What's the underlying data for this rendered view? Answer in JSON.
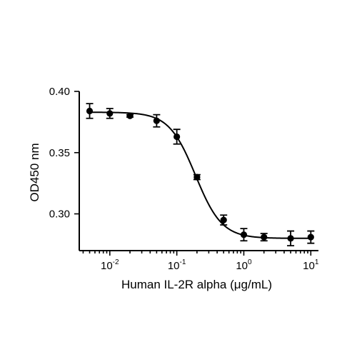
{
  "chart_data": {
    "type": "scatter",
    "xscale": "log",
    "xlabel": "Human IL-2R alpha (μg/mL)",
    "ylabel": "OD450 nm",
    "xlim": [
      0.0035,
      13
    ],
    "ylim": [
      0.27,
      0.4
    ],
    "yticks": [
      {
        "value": 0.3,
        "label": "0.30"
      },
      {
        "value": 0.35,
        "label": "0.35"
      },
      {
        "value": 0.4,
        "label": "0.40"
      }
    ],
    "xticks": [
      {
        "value": 0.01,
        "base": "10",
        "exp": "-2"
      },
      {
        "value": 0.1,
        "base": "10",
        "exp": "-1"
      },
      {
        "value": 1,
        "base": "10",
        "exp": "0"
      },
      {
        "value": 10,
        "base": "10",
        "exp": "1"
      }
    ],
    "series": [
      {
        "x": [
          0.005,
          0.01,
          0.02,
          0.05,
          0.1,
          0.2,
          0.5,
          1,
          2,
          5,
          10
        ],
        "y": [
          0.384,
          0.382,
          0.38,
          0.376,
          0.363,
          0.33,
          0.295,
          0.283,
          0.281,
          0.28,
          0.281
        ],
        "err": [
          0.006,
          0.004,
          0.001,
          0.005,
          0.006,
          0.002,
          0.004,
          0.005,
          0.003,
          0.006,
          0.005
        ]
      }
    ],
    "fit": {
      "model": "4PL",
      "top": 0.383,
      "bottom": 0.28,
      "ec50": 0.19,
      "hill": 2.2
    },
    "grid": false,
    "legend": "none"
  }
}
